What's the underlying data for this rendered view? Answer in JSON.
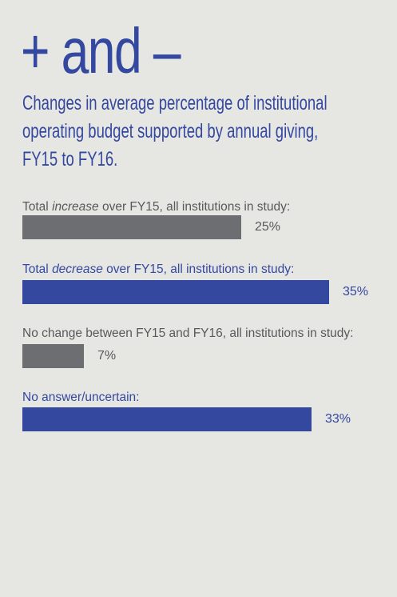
{
  "headline": "+ and –",
  "subtitle": "Changes in average percentage of institutional operating budget supported by annual giving, FY15 to FY16.",
  "colors": {
    "accent_blue": "#3448a0",
    "bar_gray": "#6d6e71",
    "text_gray": "#58595b",
    "background": "#e6e6e2"
  },
  "chart_data": {
    "type": "bar",
    "orientation": "horizontal",
    "xlim": [
      0,
      35
    ],
    "bars": [
      {
        "label_before": "Total ",
        "label_em": "increase",
        "label_after": " over FY15, all institutions in study:",
        "value": 25,
        "value_label": "25%",
        "color": "#6d6e71",
        "text_color": "#58595b"
      },
      {
        "label_before": "Total ",
        "label_em": "decrease",
        "label_after": " over FY15, all institutions in study:",
        "value": 35,
        "value_label": "35%",
        "color": "#3448a0",
        "text_color": "#3448a0"
      },
      {
        "label_before": "No change between FY15 and FY16, all institutions in study:",
        "label_em": "",
        "label_after": "",
        "value": 7,
        "value_label": "7%",
        "color": "#6d6e71",
        "text_color": "#58595b"
      },
      {
        "label_before": "No answer/uncertain:",
        "label_em": "",
        "label_after": "",
        "value": 33,
        "value_label": "33%",
        "color": "#3448a0",
        "text_color": "#3448a0"
      }
    ]
  }
}
